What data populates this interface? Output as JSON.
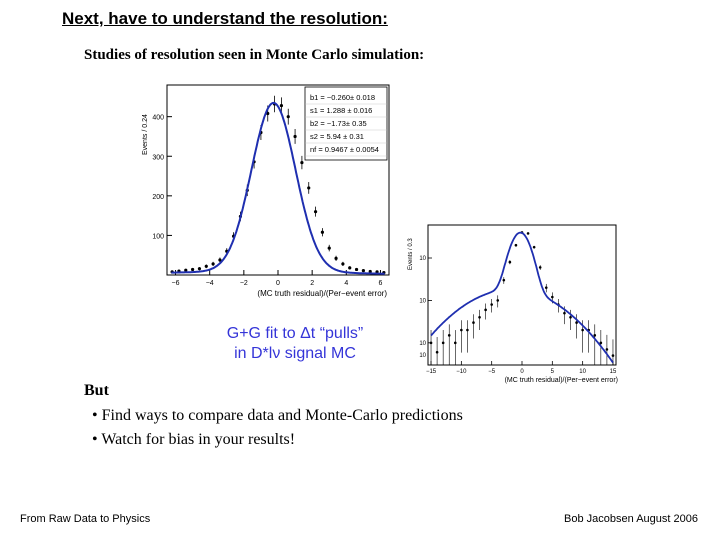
{
  "slide": {
    "title": "Next, have to understand the resolution:",
    "subtitle": "Studies of resolution seen in Monte Carlo simulation:",
    "caption_line1": "G+G fit to Δt “pulls”",
    "caption_line2": "in D*lν signal MC",
    "but_text": "But",
    "bullets": [
      "• Find ways to compare data and Monte-Carlo predictions",
      "• Watch for bias in your results!"
    ],
    "footer_left": "From Raw Data to Physics",
    "footer_right": "Bob Jacobsen August 2006"
  },
  "chart_data": [
    {
      "type": "scatter",
      "xlabel": "(MC truth residual)/(Per−event error)",
      "ylabel": "Events / 0.24",
      "xlim": [
        -6.5,
        6.5
      ],
      "ylim": [
        0,
        480
      ],
      "xticks": [
        -6,
        -4,
        -2,
        0,
        2,
        4,
        6
      ],
      "yticks": [
        100,
        200,
        300,
        400
      ],
      "stats": [
        "b1 = −0.260± 0.018",
        "s1 = 1.288 ± 0.016",
        "b2 = −1.73± 0.35",
        "s2 = 5.94 ± 0.31",
        "nf = 0.9467 ± 0.0054"
      ],
      "series": [
        {
          "x": [
            -6.2,
            -5.8,
            -5.4,
            -5.0,
            -4.6,
            -4.2,
            -3.8,
            -3.4,
            -3.0,
            -2.6,
            -2.2,
            -1.8,
            -1.4,
            -1.0,
            -0.6,
            -0.2,
            0.2,
            0.6,
            1.0,
            1.4,
            1.8,
            2.2,
            2.6,
            3.0,
            3.4,
            3.8,
            4.2,
            4.6,
            5.0,
            5.4,
            5.8,
            6.2
          ],
          "y": [
            8,
            10,
            12,
            14,
            16,
            22,
            28,
            38,
            60,
            98,
            148,
            214,
            286,
            360,
            408,
            432,
            428,
            400,
            350,
            284,
            220,
            160,
            108,
            68,
            42,
            28,
            18,
            14,
            11,
            9,
            8,
            6
          ]
        }
      ]
    },
    {
      "type": "scatter",
      "log_scale_y": true,
      "xlabel": "(MC truth residual)/(Per−event error)",
      "ylabel": "Events / 0.3",
      "xlim": [
        -15.5,
        15.5
      ],
      "ylim": [
        0.3,
        600
      ],
      "xticks": [
        -15,
        -10,
        -5,
        0,
        5,
        10,
        15
      ],
      "ytick_labels": [
        "10",
        "10",
        "10",
        "10"
      ],
      "series": [
        {
          "x": [
            -15,
            -14,
            -13,
            -12,
            -11,
            -10,
            -9,
            -8,
            -7,
            -6,
            -5,
            -4,
            -3,
            -2,
            -1,
            0,
            1,
            2,
            3,
            4,
            5,
            6,
            7,
            8,
            9,
            10,
            11,
            12,
            13,
            14,
            15
          ],
          "y": [
            1,
            0.6,
            1,
            1.5,
            1,
            2,
            2,
            3,
            4,
            6,
            8,
            10,
            30,
            80,
            200,
            400,
            380,
            180,
            60,
            20,
            12,
            8,
            5,
            4,
            3,
            2,
            2,
            1.5,
            1,
            0.7,
            0.5
          ]
        }
      ]
    }
  ]
}
